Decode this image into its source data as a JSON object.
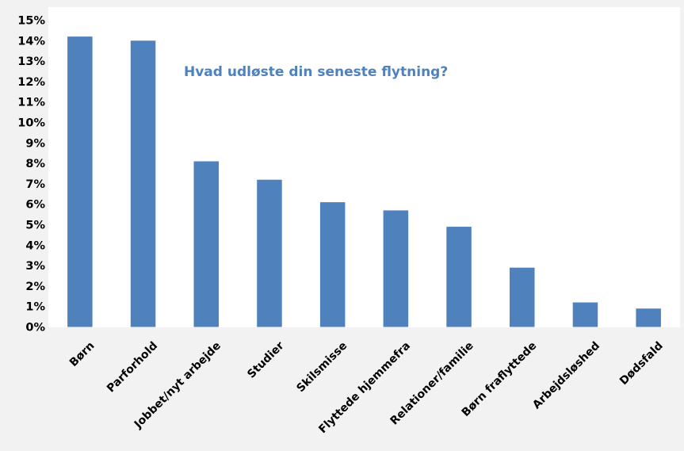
{
  "chart_data": {
    "type": "bar",
    "title": "Hvad udløste din seneste flytning?",
    "xlabel": "",
    "ylabel": "",
    "categories": [
      "Børn",
      "Parforhold",
      "Jobbet/nyt arbejde",
      "Studier",
      "Skilsmisse",
      "Flyttede hjemmefra",
      "Relationer/familie",
      "Børn fraflyttede",
      "Arbejdsløshed",
      "Dødsfald"
    ],
    "values": [
      14.2,
      14.0,
      8.1,
      7.2,
      6.1,
      5.7,
      4.9,
      2.9,
      1.2,
      0.9
    ],
    "ylim": [
      0,
      15
    ],
    "yticks": [
      "0%",
      "1%",
      "2%",
      "3%",
      "4%",
      "5%",
      "6%",
      "7%",
      "8%",
      "9%",
      "10%",
      "11%",
      "12%",
      "13%",
      "14%",
      "15%"
    ],
    "grid": false,
    "legend": "none",
    "colors": {
      "bar": "#4f81bd",
      "title": "#4f81bd",
      "plot_background": "#ffffff",
      "chart_background": "#f2f2f2"
    }
  }
}
